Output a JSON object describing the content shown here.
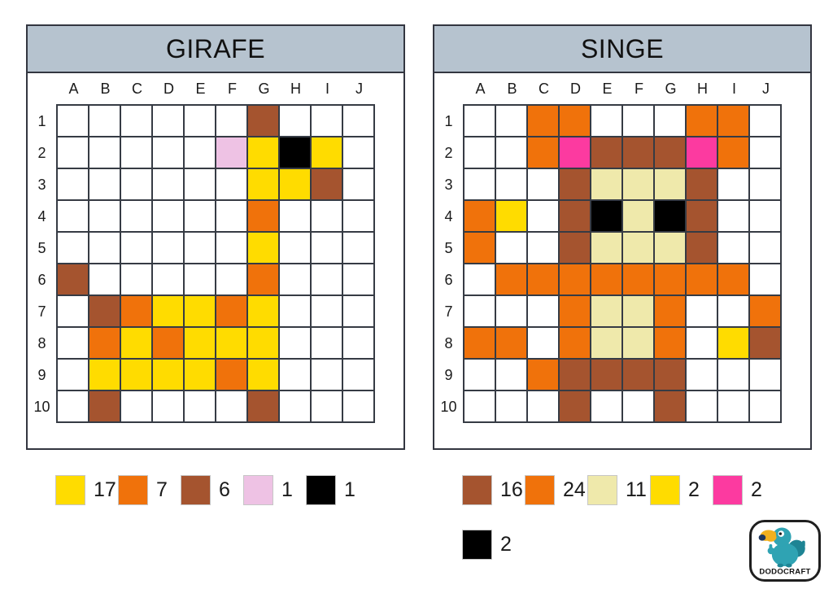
{
  "colors": {
    "yellow": "#FFDC00",
    "orange": "#F0720B",
    "brown": "#A5542F",
    "pink": "#EEC2E4",
    "black": "#000000",
    "cream": "#EFE9AB",
    "magenta": "#FC3AA0"
  },
  "header_bg": "#B6C3CF",
  "panels": [
    {
      "title": "GIRAFE",
      "columns": [
        "A",
        "B",
        "C",
        "D",
        "E",
        "F",
        "G",
        "H",
        "I",
        "J"
      ],
      "rows": [
        "1",
        "2",
        "3",
        "4",
        "5",
        "6",
        "7",
        "8",
        "9",
        "10"
      ],
      "cells": [
        [
          "",
          "",
          "",
          "",
          "",
          "",
          "brown",
          "",
          "",
          ""
        ],
        [
          "",
          "",
          "",
          "",
          "",
          "pink",
          "yellow",
          "black",
          "yellow",
          ""
        ],
        [
          "",
          "",
          "",
          "",
          "",
          "",
          "yellow",
          "yellow",
          "brown",
          ""
        ],
        [
          "",
          "",
          "",
          "",
          "",
          "",
          "orange",
          "",
          "",
          ""
        ],
        [
          "",
          "",
          "",
          "",
          "",
          "",
          "yellow",
          "",
          "",
          ""
        ],
        [
          "brown",
          "",
          "",
          "",
          "",
          "",
          "orange",
          "",
          "",
          ""
        ],
        [
          "",
          "brown",
          "orange",
          "yellow",
          "yellow",
          "orange",
          "yellow",
          "",
          "",
          ""
        ],
        [
          "",
          "orange",
          "yellow",
          "orange",
          "yellow",
          "yellow",
          "yellow",
          "",
          "",
          ""
        ],
        [
          "",
          "yellow",
          "yellow",
          "yellow",
          "yellow",
          "orange",
          "yellow",
          "",
          "",
          ""
        ],
        [
          "",
          "brown",
          "",
          "",
          "",
          "",
          "brown",
          "",
          "",
          ""
        ]
      ],
      "legend_rows": [
        [
          {
            "color": "yellow",
            "count": "17"
          },
          {
            "color": "orange",
            "count": "7"
          },
          {
            "color": "brown",
            "count": "6"
          },
          {
            "color": "pink",
            "count": "1"
          },
          {
            "color": "black",
            "count": "1"
          }
        ]
      ]
    },
    {
      "title": "SINGE",
      "columns": [
        "A",
        "B",
        "C",
        "D",
        "E",
        "F",
        "G",
        "H",
        "I",
        "J"
      ],
      "rows": [
        "1",
        "2",
        "3",
        "4",
        "5",
        "6",
        "7",
        "8",
        "9",
        "10"
      ],
      "cells": [
        [
          "",
          "",
          "orange",
          "orange",
          "",
          "",
          "",
          "orange",
          "orange",
          ""
        ],
        [
          "",
          "",
          "orange",
          "magenta",
          "brown",
          "brown",
          "brown",
          "magenta",
          "orange",
          ""
        ],
        [
          "",
          "",
          "",
          "brown",
          "cream",
          "cream",
          "cream",
          "brown",
          "",
          ""
        ],
        [
          "orange",
          "yellow",
          "",
          "brown",
          "black",
          "cream",
          "black",
          "brown",
          "",
          ""
        ],
        [
          "orange",
          "",
          "",
          "brown",
          "cream",
          "cream",
          "cream",
          "brown",
          "",
          ""
        ],
        [
          "",
          "orange",
          "orange",
          "orange",
          "orange",
          "orange",
          "orange",
          "orange",
          "orange",
          ""
        ],
        [
          "",
          "",
          "",
          "orange",
          "cream",
          "cream",
          "orange",
          "",
          "",
          "orange"
        ],
        [
          "orange",
          "orange",
          "",
          "orange",
          "cream",
          "cream",
          "orange",
          "",
          "yellow",
          "brown"
        ],
        [
          "",
          "",
          "orange",
          "brown",
          "brown",
          "brown",
          "brown",
          "",
          "",
          ""
        ],
        [
          "",
          "",
          "",
          "brown",
          "",
          "",
          "brown",
          "",
          "",
          ""
        ]
      ],
      "legend_rows": [
        [
          {
            "color": "brown",
            "count": "16"
          },
          {
            "color": "orange",
            "count": "24"
          },
          {
            "color": "cream",
            "count": "11"
          },
          {
            "color": "yellow",
            "count": "2"
          },
          {
            "color": "magenta",
            "count": "2"
          }
        ],
        [
          {
            "color": "black",
            "count": "2"
          }
        ]
      ]
    }
  ],
  "logo": {
    "text": "DODOCRAFT"
  }
}
